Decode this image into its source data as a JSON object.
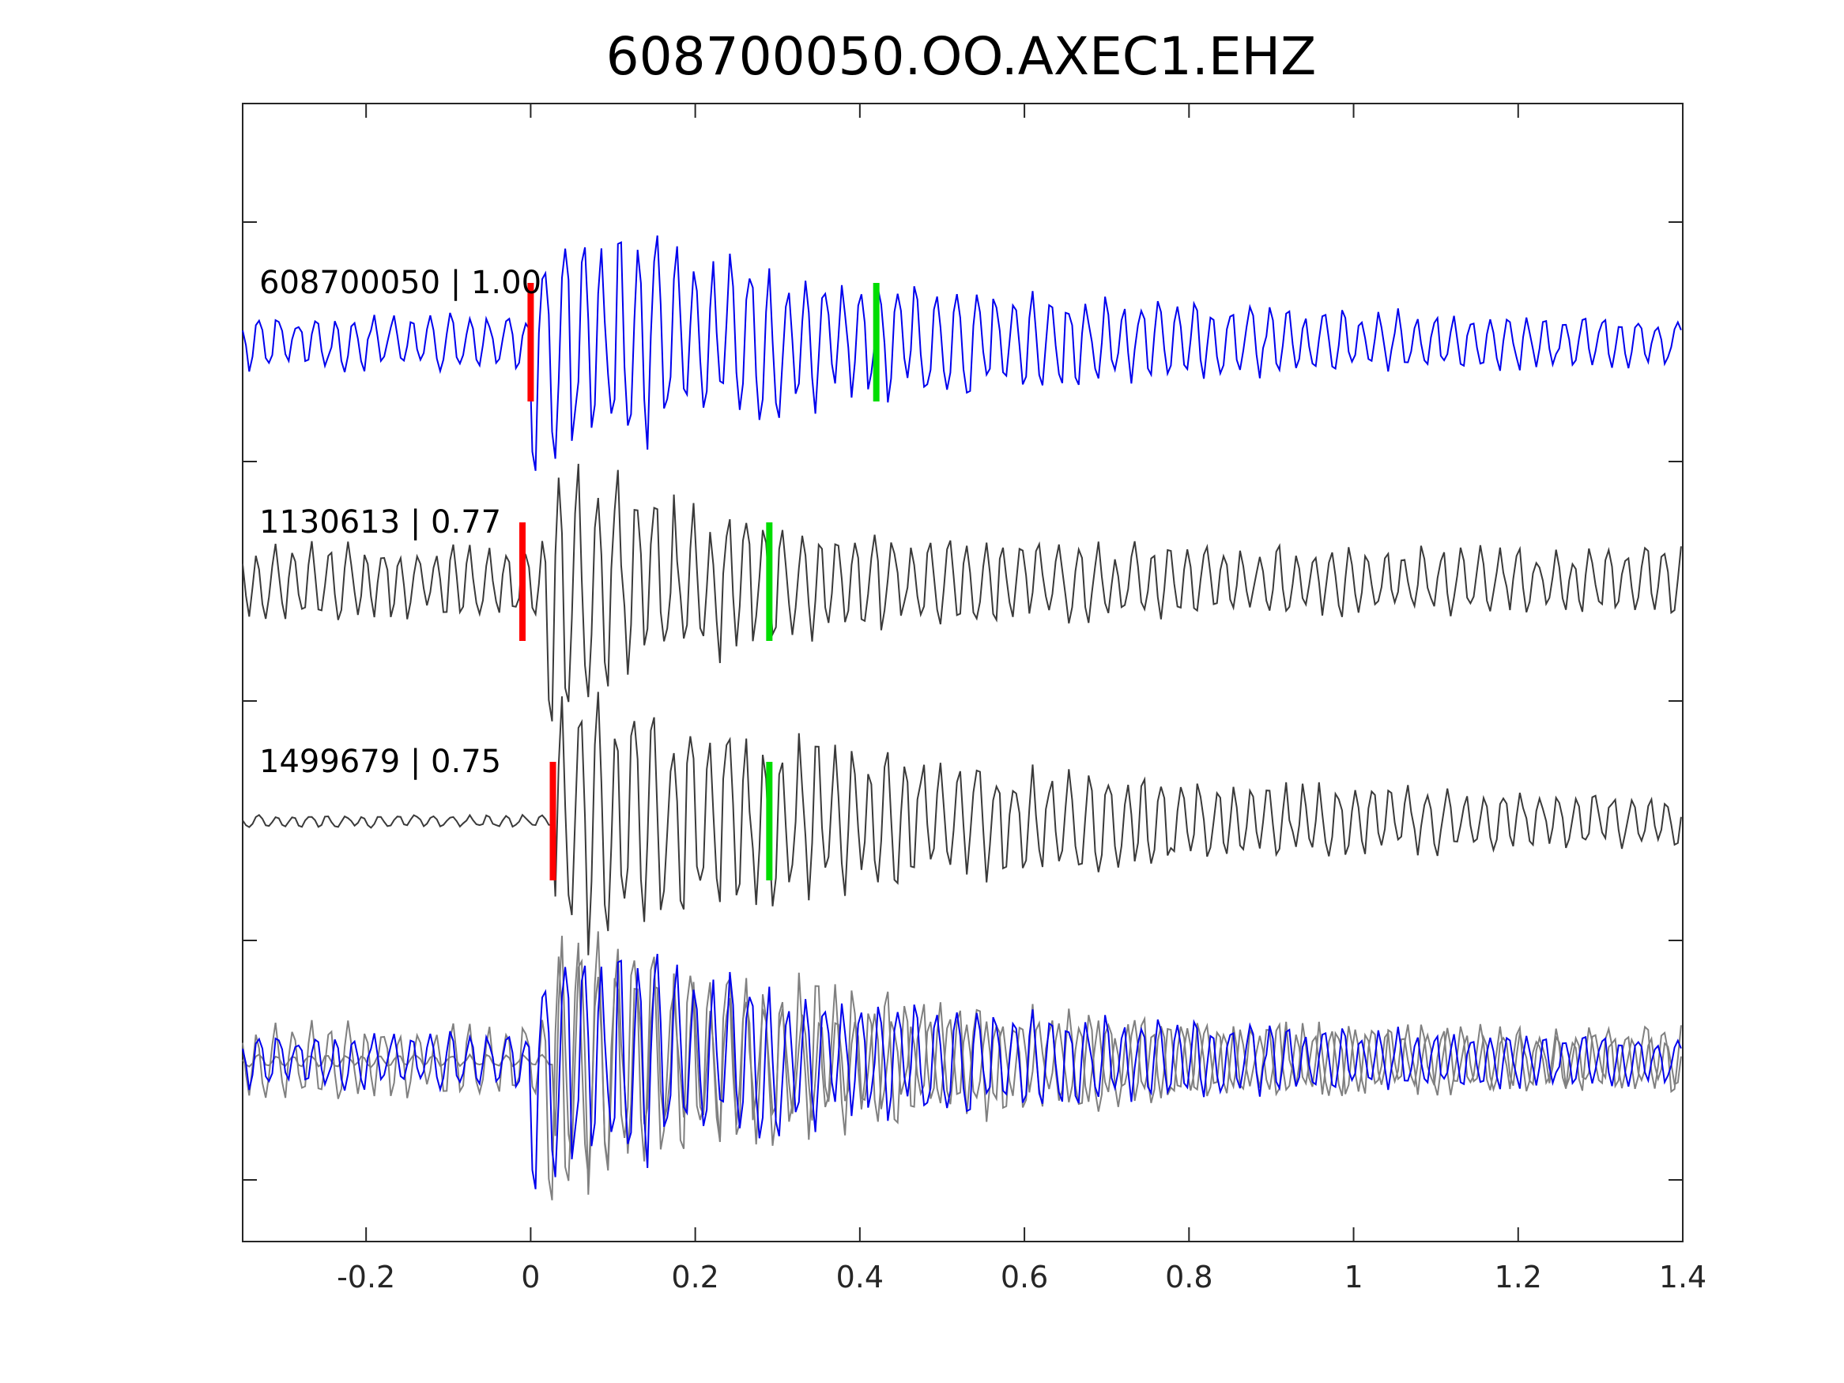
{
  "chart_data": {
    "type": "line",
    "title": "608700050.OO.AXEC1.EHZ",
    "xlabel": "",
    "ylabel": "",
    "xlim": [
      -0.35,
      1.4
    ],
    "xticks": [
      -0.2,
      0,
      0.2,
      0.4,
      0.6,
      0.8,
      1,
      1.2,
      1.4
    ],
    "xtick_labels": [
      "-0.2",
      "0",
      "0.2",
      "0.4",
      "0.6",
      "0.8",
      "1",
      "1.2",
      "1.4"
    ],
    "grid": false,
    "colors": {
      "primary_trace": "#0000ee",
      "neighbor_trace": "#3a3a3a",
      "overlay_neighbor": "#808080",
      "p_pick": "#ff0000",
      "s_pick": "#00dd00",
      "axes": "#262626"
    },
    "series": [
      {
        "label": "608700050 | 1.00",
        "p_pick": 0.0,
        "s_pick": 0.42,
        "envelope": {
          "onset": 0.0,
          "peak": 0.9,
          "decay": 0.45,
          "noise": 0.22,
          "floor": 0.16,
          "freq": 43,
          "seed": 11
        }
      },
      {
        "label": "1130613 | 0.77",
        "p_pick": -0.01,
        "s_pick": 0.29,
        "envelope": {
          "onset": 0.02,
          "peak": 0.92,
          "decay": 0.22,
          "noise": 0.3,
          "floor": 0.26,
          "freq": 44,
          "seed": 23
        }
      },
      {
        "label": "1499679 | 0.75",
        "p_pick": 0.027,
        "s_pick": 0.29,
        "envelope": {
          "onset": 0.03,
          "peak": 0.9,
          "decay": 0.5,
          "noise": 0.05,
          "floor": 0.15,
          "freq": 44,
          "seed": 37
        }
      }
    ]
  }
}
